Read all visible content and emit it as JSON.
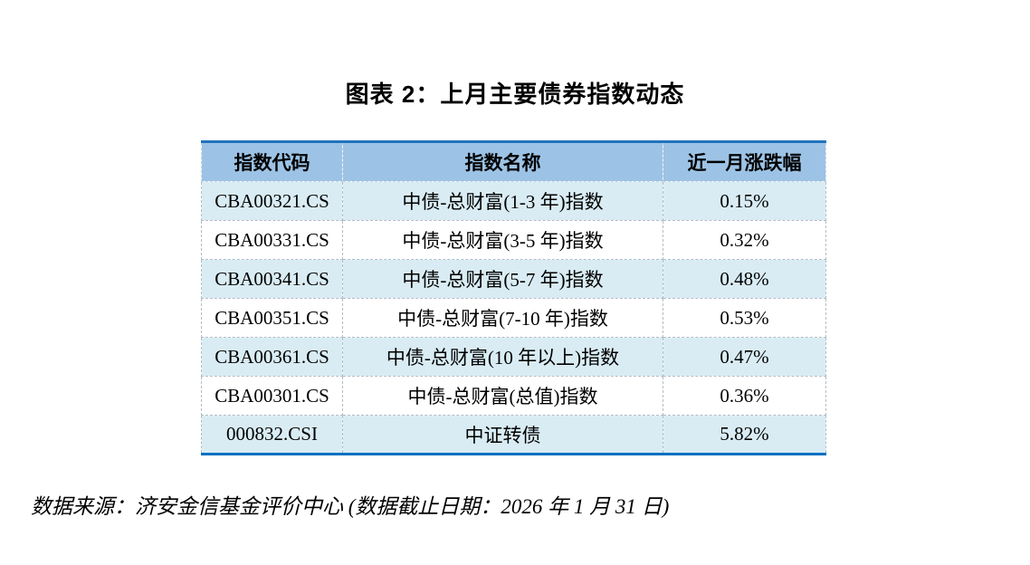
{
  "page": {
    "title": "图表 2：上月主要债券指数动态",
    "footer": "数据来源：济安金信基金评价中心 (数据截止日期：2026 年 1 月 31 日)"
  },
  "table": {
    "headers": [
      "指数代码",
      "指数名称",
      "近一月涨跌幅"
    ],
    "rows": [
      {
        "code": "CBA00321.CS",
        "name": "中债-总财富(1-3 年)指数",
        "change": "0.15%"
      },
      {
        "code": "CBA00331.CS",
        "name": "中债-总财富(3-5 年)指数",
        "change": "0.32%"
      },
      {
        "code": "CBA00341.CS",
        "name": "中债-总财富(5-7 年)指数",
        "change": "0.48%"
      },
      {
        "code": "CBA00351.CS",
        "name": "中债-总财富(7-10 年)指数",
        "change": "0.53%"
      },
      {
        "code": "CBA00361.CS",
        "name": "中债-总财富(10 年以上)指数",
        "change": "0.47%"
      },
      {
        "code": "CBA00301.CS",
        "name": "中债-总财富(总值)指数",
        "change": "0.36%"
      },
      {
        "code": "000832.CSI",
        "name": "中证转债",
        "change": "5.82%"
      }
    ],
    "colors": {
      "header_bg": "#9CC3E5",
      "row_alt_bg": "#D9ECF4",
      "row_bg": "#FFFFFF",
      "border_top": "#2173BD",
      "border_bottom": "#0070C0",
      "inner_dashed_border": "#B3BDC6"
    }
  }
}
